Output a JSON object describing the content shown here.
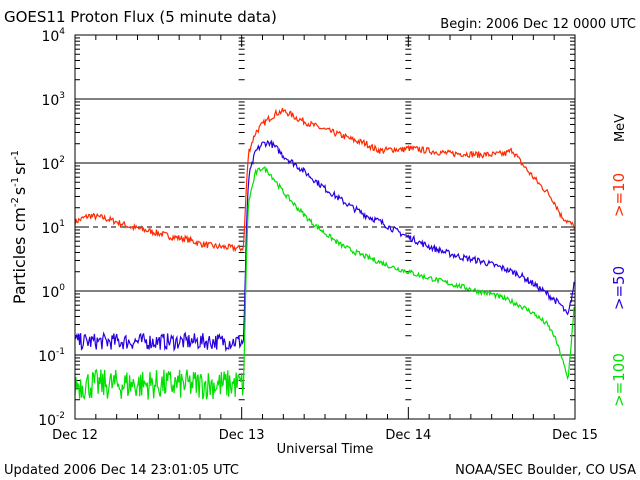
{
  "title": "GOES11 Proton Flux (5 minute data)",
  "begin": "Begin: 2006 Dec 12 0000 UTC",
  "updated": "Updated 2006 Dec 14 23:01:05 UTC",
  "credit": "NOAA/SEC Boulder, CO USA",
  "chart_data": {
    "type": "line",
    "title": "GOES11 Proton Flux (5 minute data)",
    "xlabel": "Universal Time",
    "ylabel": "Particles cm-2 s-1 sr-1",
    "ylabel_parts": {
      "base": "Particles cm",
      "exp1": "-2",
      "mid1": "s",
      "exp2": "-1",
      "mid2": "sr",
      "exp3": "-1"
    },
    "yscale": "log",
    "ylim_exp": [
      -2,
      4
    ],
    "xlim_hours": [
      0,
      72
    ],
    "x_ticks": [
      {
        "hour": 0,
        "label": "Dec 12"
      },
      {
        "hour": 24,
        "label": "Dec 13"
      },
      {
        "hour": 48,
        "label": "Dec 14"
      },
      {
        "hour": 72,
        "label": "Dec 15"
      }
    ],
    "y_ticks": [
      {
        "exp": -2,
        "label": "10",
        "sup": "-2"
      },
      {
        "exp": -1,
        "label": "10",
        "sup": "-1"
      },
      {
        "exp": 0,
        "label": "10",
        "sup": "0"
      },
      {
        "exp": 1,
        "label": "10",
        "sup": "1"
      },
      {
        "exp": 2,
        "label": "10",
        "sup": "2"
      },
      {
        "exp": 3,
        "label": "10",
        "sup": "3"
      },
      {
        "exp": 4,
        "label": "10",
        "sup": "4"
      }
    ],
    "grid": {
      "solid_decades": [
        -1,
        0,
        2,
        3
      ],
      "dashed_decades": [
        1
      ]
    },
    "unit_label": "MeV",
    "series": [
      {
        "name": ">=10",
        "color": "#ff2a00",
        "points": [
          [
            0,
            12
          ],
          [
            2,
            15
          ],
          [
            4,
            14
          ],
          [
            6,
            12
          ],
          [
            8,
            10
          ],
          [
            10,
            9
          ],
          [
            12,
            8
          ],
          [
            14,
            7
          ],
          [
            16,
            6.5
          ],
          [
            18,
            5.5
          ],
          [
            20,
            5
          ],
          [
            22,
            4.8
          ],
          [
            24,
            4.6
          ],
          [
            24.3,
            5
          ],
          [
            24.6,
            30
          ],
          [
            25,
            150
          ],
          [
            26,
            300
          ],
          [
            27,
            400
          ],
          [
            28,
            500
          ],
          [
            29,
            600
          ],
          [
            30,
            650
          ],
          [
            31,
            580
          ],
          [
            32,
            500
          ],
          [
            34,
            400
          ],
          [
            36,
            330
          ],
          [
            38,
            280
          ],
          [
            40,
            230
          ],
          [
            42,
            200
          ],
          [
            43,
            170
          ],
          [
            44,
            155
          ],
          [
            46,
            165
          ],
          [
            47,
            160
          ],
          [
            48,
            170
          ],
          [
            50,
            160
          ],
          [
            52,
            150
          ],
          [
            54,
            140
          ],
          [
            56,
            140
          ],
          [
            58,
            135
          ],
          [
            60,
            135
          ],
          [
            62,
            140
          ],
          [
            63,
            160
          ],
          [
            64,
            110
          ],
          [
            65,
            80
          ],
          [
            66,
            60
          ],
          [
            67,
            45
          ],
          [
            68,
            35
          ],
          [
            69,
            25
          ],
          [
            70,
            15
          ],
          [
            71,
            12
          ],
          [
            72,
            10
          ]
        ]
      },
      {
        "name": ">=50",
        "color": "#2a00e0",
        "points": [
          [
            0,
            0.2
          ],
          [
            4,
            0.2
          ],
          [
            8,
            0.2
          ],
          [
            12,
            0.2
          ],
          [
            16,
            0.2
          ],
          [
            20,
            0.2
          ],
          [
            24,
            0.2
          ],
          [
            24.4,
            0.5
          ],
          [
            24.7,
            10
          ],
          [
            25,
            60
          ],
          [
            26,
            150
          ],
          [
            27,
            200
          ],
          [
            28,
            210
          ],
          [
            29,
            170
          ],
          [
            30,
            130
          ],
          [
            32,
            90
          ],
          [
            34,
            60
          ],
          [
            36,
            40
          ],
          [
            38,
            28
          ],
          [
            40,
            20
          ],
          [
            42,
            15
          ],
          [
            44,
            12
          ],
          [
            46,
            9
          ],
          [
            48,
            7
          ],
          [
            50,
            5.5
          ],
          [
            52,
            4.5
          ],
          [
            54,
            3.8
          ],
          [
            56,
            3.3
          ],
          [
            58,
            3
          ],
          [
            60,
            2.6
          ],
          [
            62,
            2.2
          ],
          [
            64,
            1.8
          ],
          [
            66,
            1.3
          ],
          [
            68,
            0.9
          ],
          [
            70,
            0.6
          ],
          [
            71,
            0.4
          ],
          [
            72,
            1.5
          ]
        ]
      },
      {
        "name": ">=100",
        "color": "#00e000",
        "points": [
          [
            0,
            0.03
          ],
          [
            4,
            0.03
          ],
          [
            8,
            0.03
          ],
          [
            12,
            0.03
          ],
          [
            16,
            0.03
          ],
          [
            20,
            0.03
          ],
          [
            24,
            0.03
          ],
          [
            24.4,
            0.12
          ],
          [
            24.7,
            4
          ],
          [
            25,
            25
          ],
          [
            26,
            70
          ],
          [
            27,
            85
          ],
          [
            28,
            70
          ],
          [
            29,
            50
          ],
          [
            30,
            35
          ],
          [
            32,
            20
          ],
          [
            34,
            12
          ],
          [
            36,
            8
          ],
          [
            38,
            5.5
          ],
          [
            40,
            4.2
          ],
          [
            42,
            3.4
          ],
          [
            44,
            2.8
          ],
          [
            46,
            2.3
          ],
          [
            48,
            2
          ],
          [
            50,
            1.7
          ],
          [
            52,
            1.5
          ],
          [
            54,
            1.3
          ],
          [
            56,
            1.15
          ],
          [
            58,
            1
          ],
          [
            60,
            0.9
          ],
          [
            62,
            0.75
          ],
          [
            64,
            0.6
          ],
          [
            66,
            0.45
          ],
          [
            68,
            0.3
          ],
          [
            69,
            0.2
          ],
          [
            70,
            0.1
          ],
          [
            71,
            0.04
          ],
          [
            72,
            0.8
          ]
        ]
      }
    ]
  }
}
